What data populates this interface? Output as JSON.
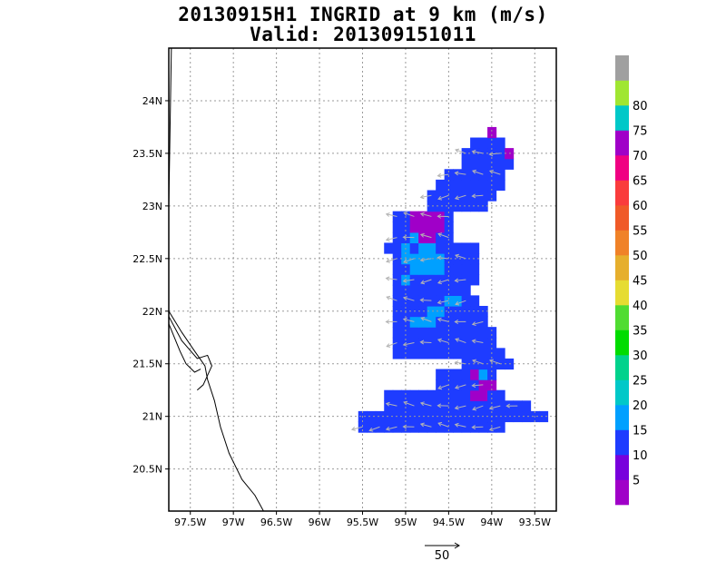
{
  "chart_data": {
    "type": "heatmap",
    "title": "20130915H1 INGRID at 9 km (m/s)",
    "subtitle": "Valid: 201309151011",
    "xlim": [
      -97.75,
      -93.25
    ],
    "ylim": [
      20.1,
      24.5
    ],
    "x_ticks": [
      {
        "value": -97.5,
        "label": "97.5W"
      },
      {
        "value": -97,
        "label": "97W"
      },
      {
        "value": -96.5,
        "label": "96.5W"
      },
      {
        "value": -96,
        "label": "96W"
      },
      {
        "value": -95.5,
        "label": "95.5W"
      },
      {
        "value": -95,
        "label": "95W"
      },
      {
        "value": -94.5,
        "label": "94.5W"
      },
      {
        "value": -94,
        "label": "94W"
      },
      {
        "value": -93.5,
        "label": "93.5W"
      }
    ],
    "y_ticks": [
      {
        "value": 20.5,
        "label": "20.5N"
      },
      {
        "value": 21,
        "label": "21N"
      },
      {
        "value": 21.5,
        "label": "21.5N"
      },
      {
        "value": 22,
        "label": "22N"
      },
      {
        "value": 22.5,
        "label": "22.5N"
      },
      {
        "value": 23,
        "label": "23N"
      },
      {
        "value": 23.5,
        "label": "23.5N"
      },
      {
        "value": 24,
        "label": "24N"
      }
    ],
    "grid": true,
    "colorbar": {
      "labels": [
        "5",
        "10",
        "15",
        "20",
        "25",
        "30",
        "35",
        "40",
        "45",
        "50",
        "55",
        "60",
        "65",
        "70",
        "75",
        "80"
      ],
      "colors": [
        "#a000c8",
        "#7800dc",
        "#1e3cff",
        "#00a0ff",
        "#00c8c8",
        "#00d28c",
        "#00dc00",
        "#50dc32",
        "#e6dc32",
        "#e6af2d",
        "#f08228",
        "#f05a28",
        "#fa3c3c",
        "#f00082",
        "#a000c8",
        "#00c8c8",
        "#a0e632",
        "#a0a0a0"
      ]
    },
    "reference_vector": {
      "label": "50",
      "value": 50
    },
    "field": {
      "lon0": -95.75,
      "lat0": 20.85,
      "dlon": 0.1,
      "dlat": 0.1,
      "rows": [
        "..11111111111111111.......",
        "..1111111111111111111111..",
        ".....11111111111111111....",
        ".....11111111115511.......",
        "...........1111155........",
        "...........1111521........",
        "..............111111......",
        "......1111111111111.......",
        "......111111111111........",
        "......111111111111........",
        "......11222111111.........",
        "......11112211111.........",
        "......1111112211..........",
        "......111111111...........",
        "......1211111111..........",
        "......1122221111..........",
        "......1222221111..........",
        ".....11212211111..........",
        "......1125511.............",
        "......1155551.............",
        "......1155551.............",
        "..........1111111.........",
        "..........11111111........",
        "...........11111111.......",
        "............1111111.......",
        "..............111111......",
        "..............111115......",
        "...............1111.......",
        ".................5........"
      ]
    },
    "wind_direction": "westward",
    "coastline": [
      [
        [
          -97.72,
          24.5
        ],
        [
          -97.73,
          24.0
        ],
        [
          -97.74,
          23.5
        ],
        [
          -97.75,
          23.0
        ],
        [
          -97.76,
          22.5
        ],
        [
          -97.75,
          22.0
        ]
      ],
      [
        [
          -97.75,
          22.0
        ],
        [
          -97.6,
          21.8
        ],
        [
          -97.45,
          21.62
        ],
        [
          -97.33,
          21.48
        ],
        [
          -97.3,
          21.35
        ],
        [
          -97.22,
          21.15
        ],
        [
          -97.15,
          20.9
        ],
        [
          -97.05,
          20.65
        ],
        [
          -96.9,
          20.4
        ],
        [
          -96.75,
          20.25
        ],
        [
          -96.65,
          20.1
        ]
      ],
      [
        [
          -97.75,
          21.95
        ],
        [
          -97.6,
          21.72
        ],
        [
          -97.42,
          21.55
        ],
        [
          -97.3,
          21.58
        ],
        [
          -97.25,
          21.48
        ],
        [
          -97.35,
          21.3
        ],
        [
          -97.42,
          21.25
        ]
      ],
      [
        [
          -97.75,
          21.88
        ],
        [
          -97.62,
          21.62
        ],
        [
          -97.55,
          21.5
        ],
        [
          -97.45,
          21.42
        ],
        [
          -97.38,
          21.45
        ]
      ]
    ]
  }
}
